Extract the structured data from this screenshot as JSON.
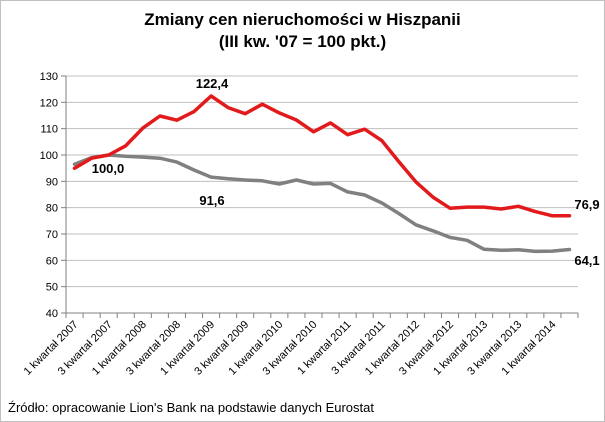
{
  "chart_data": {
    "type": "line",
    "title": "Zmiany cen nieruchomości w Hiszpanii",
    "subtitle": "(III kw. '07 = 100 pkt.)",
    "xlabel": "",
    "ylabel": "",
    "ylim": [
      40,
      130
    ],
    "yticks": [
      40,
      50,
      60,
      70,
      80,
      90,
      100,
      110,
      120,
      130
    ],
    "grid": "horizontal",
    "legend": "none",
    "categories": [
      "1 kwartał 2007",
      "2 kwartał 2007",
      "3 kwartał 2007",
      "4 kwartał 2007",
      "1 kwartał 2008",
      "2 kwartał 2008",
      "3 kwartał 2008",
      "4 kwartał 2008",
      "1 kwartał 2009",
      "2 kwartał 2009",
      "3 kwartał 2009",
      "4 kwartał 2009",
      "1 kwartał 2010",
      "2 kwartał 2010",
      "3 kwartał 2010",
      "4 kwartał 2010",
      "1 kwartał 2011",
      "2 kwartał 2011",
      "3 kwartał 2011",
      "4 kwartał 2011",
      "1 kwartał 2012",
      "2 kwartał 2012",
      "3 kwartał 2012",
      "4 kwartał 2012",
      "1 kwartał 2013",
      "2 kwartał 2013",
      "3 kwartał 2013",
      "4 kwartał 2013",
      "1 kwartał 2014",
      "2 kwartał 2014"
    ],
    "visible_tick_labels": [
      "1 kwartał 2007",
      "3 kwartał 2007",
      "1 kwartał 2008",
      "3 kwartał 2008",
      "1 kwartał 2009",
      "3 kwartał 2009",
      "1 kwartał 2010",
      "3 kwartał 2010",
      "1 kwartał 2011",
      "3 kwartał 2011",
      "1 kwartał 2012",
      "3 kwartał 2012",
      "1 kwartał 2013",
      "3 kwartał 2013",
      "1 kwartał 2014"
    ],
    "series": [
      {
        "color": "#e31a1c",
        "values": [
          95.0,
          98.8,
          100.0,
          103.5,
          110.2,
          114.8,
          113.2,
          116.5,
          122.4,
          118.0,
          115.7,
          119.3,
          116.0,
          113.3,
          108.8,
          112.2,
          107.7,
          109.8,
          105.5,
          97.5,
          89.8,
          84.0,
          79.8,
          80.2,
          80.2,
          79.5,
          80.5,
          78.5,
          76.9,
          76.9
        ]
      },
      {
        "color": "#808080",
        "values": [
          96.5,
          99.0,
          100.0,
          99.5,
          99.2,
          98.8,
          97.3,
          94.3,
          91.6,
          91.0,
          90.5,
          90.2,
          89.0,
          90.5,
          89.0,
          89.2,
          86.0,
          84.8,
          81.8,
          77.8,
          73.5,
          71.2,
          68.7,
          67.6,
          64.2,
          63.8,
          64.0,
          63.4,
          63.5,
          64.1
        ]
      }
    ],
    "annotations": [
      "122,4",
      "100,0",
      "91,6",
      "76,9",
      "64,1"
    ]
  },
  "source": "Źródło: opracowanie Lion's Bank na podstawie danych Eurostat"
}
